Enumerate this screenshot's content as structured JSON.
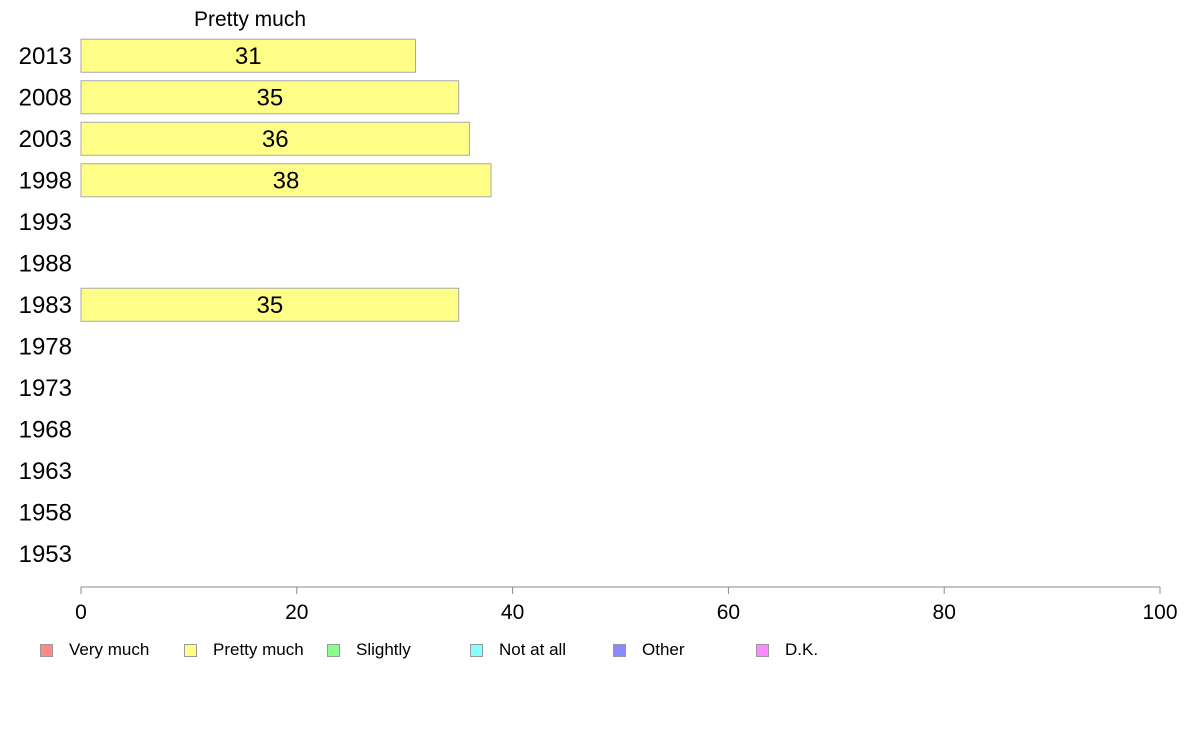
{
  "chart_data": {
    "type": "bar",
    "orientation": "horizontal",
    "title": "Pretty much",
    "categories": [
      "2013",
      "2008",
      "2003",
      "1998",
      "1993",
      "1988",
      "1983",
      "1978",
      "1973",
      "1968",
      "1963",
      "1958",
      "1953"
    ],
    "series": [
      {
        "name": "Pretty much",
        "color": "#ffff88",
        "values": [
          31,
          35,
          36,
          38,
          null,
          null,
          35,
          null,
          null,
          null,
          null,
          null,
          null
        ]
      }
    ],
    "xlim": [
      0,
      100
    ],
    "xticks": [
      0,
      20,
      40,
      60,
      80,
      100
    ],
    "grid": false,
    "legend_position": "bottom",
    "legend": [
      {
        "label": "Very much",
        "color": "#ff8888"
      },
      {
        "label": "Pretty much",
        "color": "#ffff88"
      },
      {
        "label": "Slightly",
        "color": "#88ff88"
      },
      {
        "label": "Not at all",
        "color": "#88ffff"
      },
      {
        "label": "Other",
        "color": "#8888ff"
      },
      {
        "label": "D.K.",
        "color": "#ff88ff"
      }
    ]
  }
}
